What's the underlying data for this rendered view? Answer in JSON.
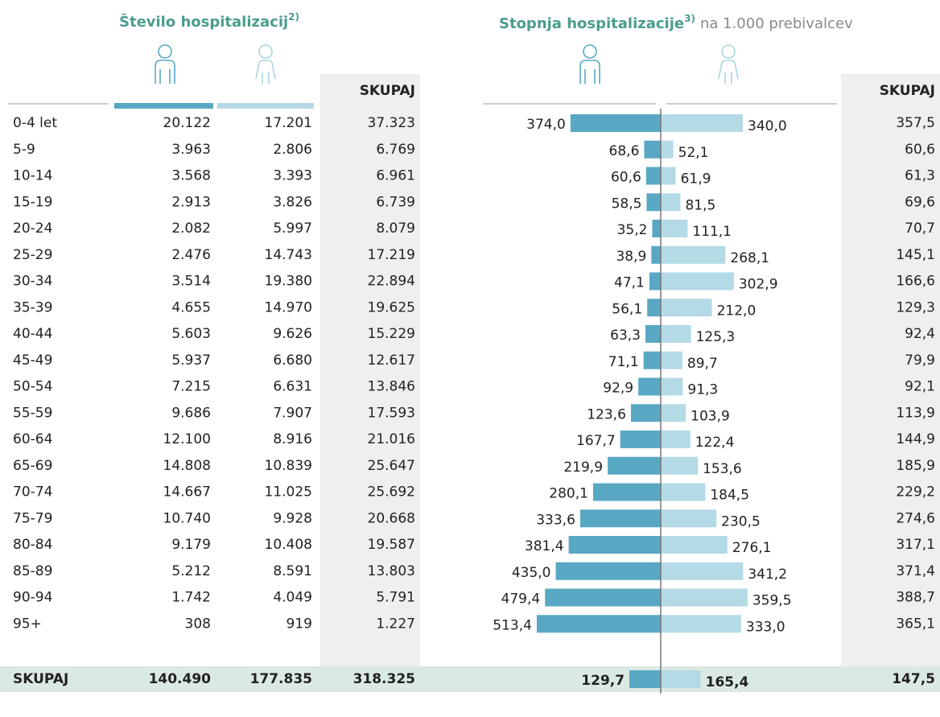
{
  "left_title": "Število hospitalizacij",
  "left_title_sup": "2)",
  "right_title": "Stopnja hospitalizacije",
  "right_title_sup": "3)",
  "right_subtitle": "na 1.000 prebivalcev",
  "total_header": "SKUPAJ",
  "male_color": "#58a8c4",
  "female_color": "#b4dae5",
  "rows": [
    {
      "age": "0-4 let",
      "male": "20.122",
      "female": "17.201",
      "total": "37.323",
      "rate_male": 374.0,
      "rate_male_label": "374,0",
      "rate_female": 340.0,
      "rate_female_label": "340,0",
      "rate_total": "357,5"
    },
    {
      "age": "5-9",
      "male": "3.963",
      "female": "2.806",
      "total": "6.769",
      "rate_male": 68.6,
      "rate_male_label": "68,6",
      "rate_female": 52.1,
      "rate_female_label": "52,1",
      "rate_total": "60,6"
    },
    {
      "age": "10-14",
      "male": "3.568",
      "female": "3.393",
      "total": "6.961",
      "rate_male": 60.6,
      "rate_male_label": "60,6",
      "rate_female": 61.9,
      "rate_female_label": "61,9",
      "rate_total": "61,3"
    },
    {
      "age": "15-19",
      "male": "2.913",
      "female": "3.826",
      "total": "6.739",
      "rate_male": 58.5,
      "rate_male_label": "58,5",
      "rate_female": 81.5,
      "rate_female_label": "81,5",
      "rate_total": "69,6"
    },
    {
      "age": "20-24",
      "male": "2.082",
      "female": "5.997",
      "total": "8.079",
      "rate_male": 35.2,
      "rate_male_label": "35,2",
      "rate_female": 111.1,
      "rate_female_label": "111,1",
      "rate_total": "70,7"
    },
    {
      "age": "25-29",
      "male": "2.476",
      "female": "14.743",
      "total": "17.219",
      "rate_male": 38.9,
      "rate_male_label": "38,9",
      "rate_female": 268.1,
      "rate_female_label": "268,1",
      "rate_total": "145,1"
    },
    {
      "age": "30-34",
      "male": "3.514",
      "female": "19.380",
      "total": "22.894",
      "rate_male": 47.1,
      "rate_male_label": "47,1",
      "rate_female": 302.9,
      "rate_female_label": "302,9",
      "rate_total": "166,6"
    },
    {
      "age": "35-39",
      "male": "4.655",
      "female": "14.970",
      "total": "19.625",
      "rate_male": 56.1,
      "rate_male_label": "56,1",
      "rate_female": 212.0,
      "rate_female_label": "212,0",
      "rate_total": "129,3"
    },
    {
      "age": "40-44",
      "male": "5.603",
      "female": "9.626",
      "total": "15.229",
      "rate_male": 63.3,
      "rate_male_label": "63,3",
      "rate_female": 125.3,
      "rate_female_label": "125,3",
      "rate_total": "92,4"
    },
    {
      "age": "45-49",
      "male": "5.937",
      "female": "6.680",
      "total": "12.617",
      "rate_male": 71.1,
      "rate_male_label": "71,1",
      "rate_female": 89.7,
      "rate_female_label": "89,7",
      "rate_total": "79,9"
    },
    {
      "age": "50-54",
      "male": "7.215",
      "female": "6.631",
      "total": "13.846",
      "rate_male": 92.9,
      "rate_male_label": "92,9",
      "rate_female": 91.3,
      "rate_female_label": "91,3",
      "rate_total": "92,1"
    },
    {
      "age": "55-59",
      "male": "9.686",
      "female": "7.907",
      "total": "17.593",
      "rate_male": 123.6,
      "rate_male_label": "123,6",
      "rate_female": 103.9,
      "rate_female_label": "103,9",
      "rate_total": "113,9"
    },
    {
      "age": "60-64",
      "male": "12.100",
      "female": "8.916",
      "total": "21.016",
      "rate_male": 167.7,
      "rate_male_label": "167,7",
      "rate_female": 122.4,
      "rate_female_label": "122,4",
      "rate_total": "144,9"
    },
    {
      "age": "65-69",
      "male": "14.808",
      "female": "10.839",
      "total": "25.647",
      "rate_male": 219.9,
      "rate_male_label": "219,9",
      "rate_female": 153.6,
      "rate_female_label": "153,6",
      "rate_total": "185,9"
    },
    {
      "age": "70-74",
      "male": "14.667",
      "female": "11.025",
      "total": "25.692",
      "rate_male": 280.1,
      "rate_male_label": "280,1",
      "rate_female": 184.5,
      "rate_female_label": "184,5",
      "rate_total": "229,2"
    },
    {
      "age": "75-79",
      "male": "10.740",
      "female": "9.928",
      "total": "20.668",
      "rate_male": 333.6,
      "rate_male_label": "333,6",
      "rate_female": 230.5,
      "rate_female_label": "230,5",
      "rate_total": "274,6"
    },
    {
      "age": "80-84",
      "male": "9.179",
      "female": "10.408",
      "total": "19.587",
      "rate_male": 381.4,
      "rate_male_label": "381,4",
      "rate_female": 276.1,
      "rate_female_label": "276,1",
      "rate_total": "317,1"
    },
    {
      "age": "85-89",
      "male": "5.212",
      "female": "8.591",
      "total": "13.803",
      "rate_male": 435.0,
      "rate_male_label": "435,0",
      "rate_female": 341.2,
      "rate_female_label": "341,2",
      "rate_total": "371,4"
    },
    {
      "age": "90-94",
      "male": "1.742",
      "female": "4.049",
      "total": "5.791",
      "rate_male": 479.4,
      "rate_male_label": "479,4",
      "rate_female": 359.5,
      "rate_female_label": "359,5",
      "rate_total": "388,7"
    },
    {
      "age": "95+",
      "male": "308",
      "female": "919",
      "total": "1.227",
      "rate_male": 513.4,
      "rate_male_label": "513,4",
      "rate_female": 333.0,
      "rate_female_label": "333,0",
      "rate_total": "365,1"
    }
  ],
  "total": {
    "age": "SKUPAJ",
    "male": "140.490",
    "female": "177.835",
    "total": "318.325",
    "rate_male": 129.7,
    "rate_male_label": "129,7",
    "rate_female": 165.4,
    "rate_female_label": "165,4",
    "rate_total": "147,5"
  }
}
